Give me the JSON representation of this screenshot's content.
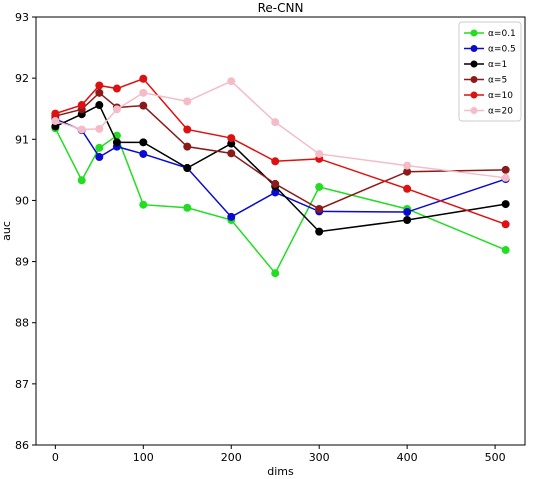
{
  "chart_data": {
    "type": "line",
    "title": "Re-CNN",
    "xlabel": "dims",
    "ylabel": "auc",
    "x": [
      0,
      30,
      50,
      70,
      100,
      150,
      200,
      250,
      300,
      400,
      512
    ],
    "xlim": [
      -22,
      534
    ],
    "ylim": [
      86,
      93
    ],
    "xticks": [
      0,
      100,
      200,
      300,
      400,
      500
    ],
    "yticks": [
      86,
      87,
      88,
      89,
      90,
      91,
      92,
      93
    ],
    "grid": false,
    "legend_position": "top-right",
    "series": [
      {
        "name": "α=0.1",
        "color": "#22dd22",
        "values": [
          91.18,
          90.33,
          90.86,
          91.06,
          89.93,
          89.88,
          89.68,
          88.81,
          90.22,
          89.86,
          89.19
        ]
      },
      {
        "name": "α=0.5",
        "color": "#0a0ad0",
        "values": [
          91.33,
          91.15,
          90.71,
          90.88,
          90.76,
          90.53,
          89.73,
          90.13,
          89.82,
          89.81,
          90.35
        ]
      },
      {
        "name": "α=1",
        "color": "#000000",
        "values": [
          91.21,
          91.41,
          91.56,
          90.95,
          90.95,
          90.53,
          90.93,
          90.23,
          89.49,
          89.68,
          89.94
        ]
      },
      {
        "name": "α=5",
        "color": "#8b1a1a",
        "values": [
          91.38,
          91.49,
          91.76,
          91.52,
          91.55,
          90.88,
          90.77,
          90.27,
          89.86,
          90.47,
          90.5
        ]
      },
      {
        "name": "α=10",
        "color": "#dd1111",
        "values": [
          91.42,
          91.56,
          91.88,
          91.83,
          91.99,
          91.16,
          91.02,
          90.64,
          90.68,
          90.19,
          89.61
        ]
      },
      {
        "name": "α=20",
        "color": "#f5bcc8",
        "values": [
          91.3,
          91.16,
          91.17,
          91.49,
          91.76,
          91.62,
          91.95,
          91.28,
          90.76,
          90.57,
          90.37
        ]
      }
    ]
  }
}
